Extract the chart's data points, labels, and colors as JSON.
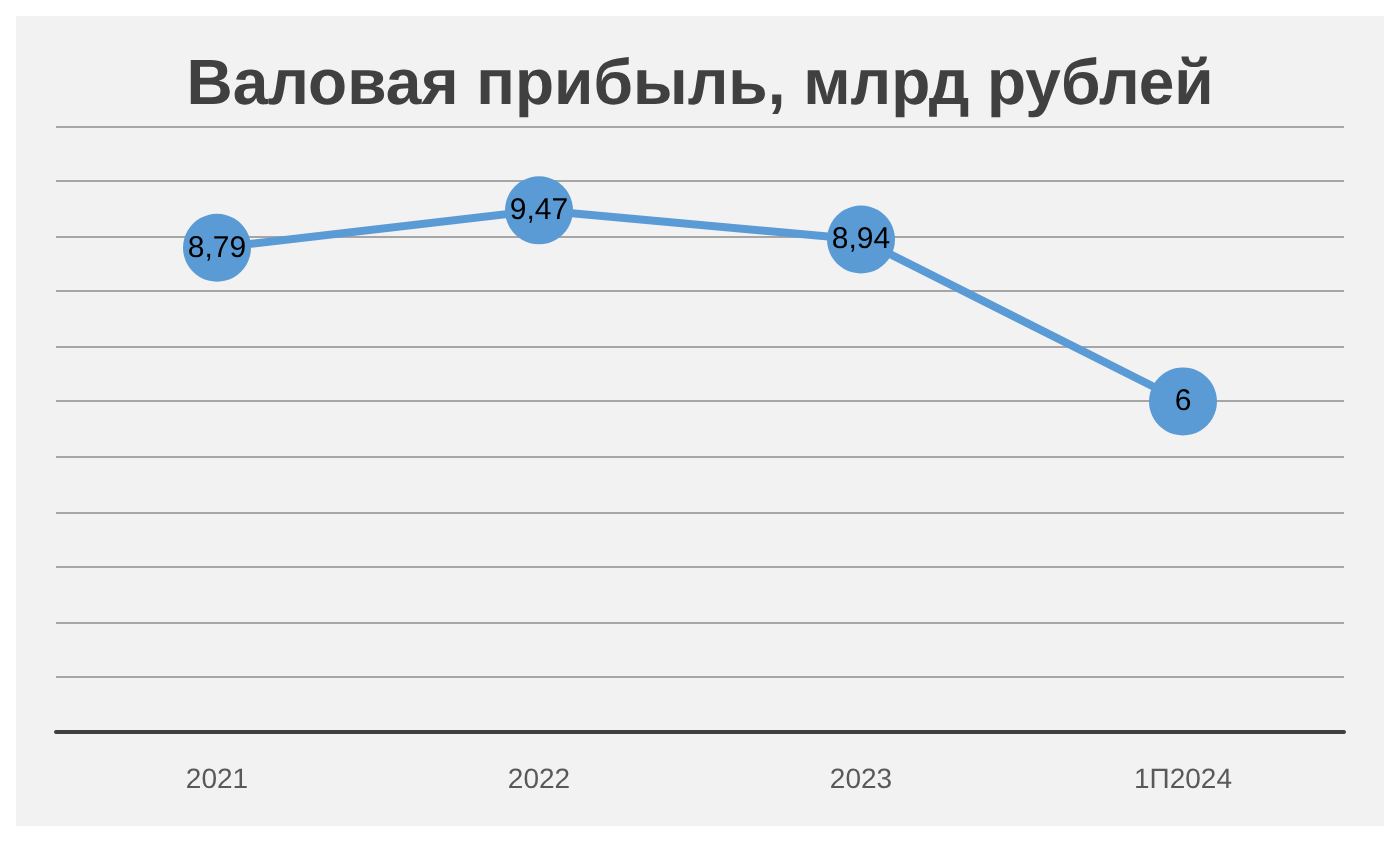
{
  "chart_data": {
    "type": "line",
    "title": "Валовая прибыль, млрд рублей",
    "categories": [
      "2021",
      "2022",
      "2023",
      "1П2024"
    ],
    "series": [
      {
        "color": "#5b9bd5",
        "values": [
          8.79,
          9.47,
          8.94,
          6
        ],
        "value_labels": [
          "8,79",
          "9,47",
          "8,94",
          "6"
        ]
      }
    ],
    "ylim": [
      0,
      11
    ],
    "yticks": [
      {
        "value": 0,
        "label": null
      },
      {
        "value": 1,
        "label": null
      },
      {
        "value": 2,
        "label": null
      },
      {
        "value": 3,
        "label": null
      },
      {
        "value": 4,
        "label": null
      },
      {
        "value": 5,
        "label": null
      },
      {
        "value": 6,
        "label": null
      },
      {
        "value": 7,
        "label": null
      },
      {
        "value": 8,
        "label": null
      },
      {
        "value": 9,
        "label": null
      },
      {
        "value": 10,
        "label": null
      },
      {
        "value": 11,
        "label": null
      }
    ],
    "tick_labels": "x",
    "grid": "y",
    "marker": "circle",
    "line_style": "solid"
  }
}
